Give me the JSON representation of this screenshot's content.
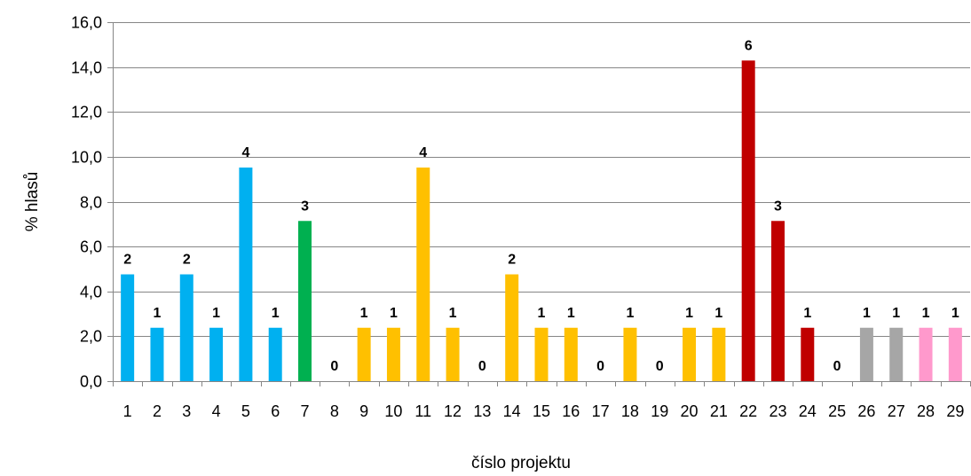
{
  "chart_data": {
    "type": "bar",
    "title": "",
    "xlabel": "číslo projektu",
    "ylabel": "% hlasů",
    "ylim": [
      0,
      16
    ],
    "y_ticks": [
      "0,0",
      "2,0",
      "4,0",
      "6,0",
      "8,0",
      "10,0",
      "12,0",
      "14,0",
      "16,0"
    ],
    "grid": true,
    "categories": [
      "1",
      "2",
      "3",
      "4",
      "5",
      "6",
      "7",
      "8",
      "9",
      "10",
      "11",
      "12",
      "13",
      "14",
      "15",
      "16",
      "17",
      "18",
      "19",
      "20",
      "21",
      "22",
      "23",
      "24",
      "25",
      "26",
      "27",
      "28",
      "29"
    ],
    "values": [
      4.76,
      2.38,
      4.76,
      2.38,
      9.52,
      2.38,
      7.14,
      0,
      2.38,
      2.38,
      9.52,
      2.38,
      0,
      4.76,
      2.38,
      2.38,
      0,
      2.38,
      0,
      2.38,
      2.38,
      14.29,
      7.14,
      2.38,
      0,
      2.38,
      2.38,
      2.38,
      2.38
    ],
    "data_labels": [
      "2",
      "1",
      "2",
      "1",
      "4",
      "1",
      "3",
      "0",
      "1",
      "1",
      "4",
      "1",
      "0",
      "2",
      "1",
      "1",
      "0",
      "1",
      "0",
      "1",
      "1",
      "6",
      "3",
      "1",
      "0",
      "1",
      "1",
      "1",
      "1"
    ],
    "colors": [
      "#00B0F0",
      "#00B0F0",
      "#00B0F0",
      "#00B0F0",
      "#00B0F0",
      "#00B0F0",
      "#00B050",
      "#FFC000",
      "#FFC000",
      "#FFC000",
      "#FFC000",
      "#FFC000",
      "#FFC000",
      "#FFC000",
      "#FFC000",
      "#FFC000",
      "#FFC000",
      "#FFC000",
      "#FFC000",
      "#FFC000",
      "#FFC000",
      "#C00000",
      "#C00000",
      "#C00000",
      "#C00000",
      "#A6A6A6",
      "#A6A6A6",
      "#FF99CC",
      "#FF99CC"
    ],
    "gridline_color": "#868686",
    "axis_color": "#868686"
  }
}
